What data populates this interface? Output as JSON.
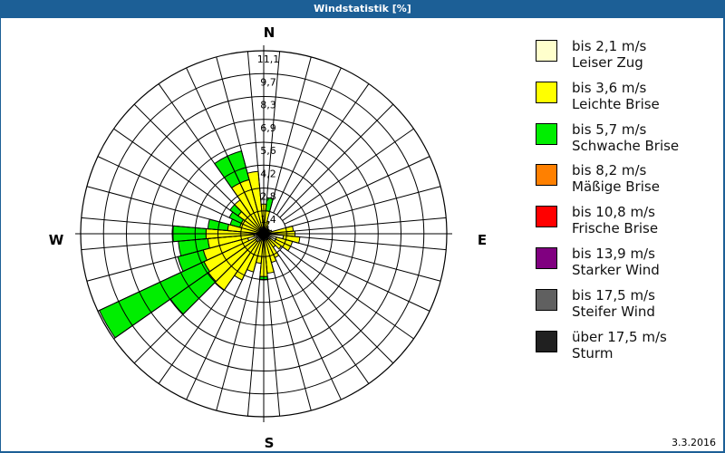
{
  "window": {
    "title": "Windstatistik [%]"
  },
  "footer": {
    "date": "3.3.2016"
  },
  "compass": {
    "N": "N",
    "E": "E",
    "S": "S",
    "W": "W"
  },
  "legend": [
    {
      "line1": "bis 2,1 m/s",
      "line2": "Leiser Zug",
      "color": "#ffffcc"
    },
    {
      "line1": "bis 3,6 m/s",
      "line2": "Leichte Brise",
      "color": "#ffff00"
    },
    {
      "line1": "bis 5,7 m/s",
      "line2": "Schwache Brise",
      "color": "#00ee00"
    },
    {
      "line1": "bis 8,2 m/s",
      "line2": "Mäßige Brise",
      "color": "#ff8000"
    },
    {
      "line1": "bis 10,8 m/s",
      "line2": "Frische Brise",
      "color": "#ff0000"
    },
    {
      "line1": "bis 13,9 m/s",
      "line2": "Starker Wind",
      "color": "#800080"
    },
    {
      "line1": "bis 17,5 m/s",
      "line2": "Steifer Wind",
      "color": "#606060"
    },
    {
      "line1": "über 17,5 m/s",
      "line2": "Sturm",
      "color": "#202020"
    }
  ],
  "chart_data": {
    "type": "wind-rose",
    "title": "Windstatistik [%]",
    "radial_ticks": [
      "1,4",
      "2,8",
      "4,2",
      "5,6",
      "6,9",
      "8,3",
      "9,7",
      "11,1"
    ],
    "rmax": 11.1,
    "sector_width_deg": 10,
    "bins": [
      "bis 2,1 m/s",
      "bis 3,6 m/s",
      "bis 5,7 m/s"
    ],
    "sectors": [
      {
        "dir": 0,
        "values": [
          0.6,
          1.2,
          0.0
        ]
      },
      {
        "dir": 10,
        "values": [
          0.4,
          1.0,
          0.8
        ]
      },
      {
        "dir": 20,
        "values": [
          0.3,
          0.5,
          0.0
        ]
      },
      {
        "dir": 30,
        "values": [
          0.2,
          0.3,
          0.0
        ]
      },
      {
        "dir": 40,
        "values": [
          0.2,
          0.2,
          0.0
        ]
      },
      {
        "dir": 50,
        "values": [
          0.2,
          0.2,
          0.0
        ]
      },
      {
        "dir": 60,
        "values": [
          0.2,
          0.2,
          0.0
        ]
      },
      {
        "dir": 70,
        "values": [
          0.2,
          0.3,
          0.0
        ]
      },
      {
        "dir": 80,
        "values": [
          0.4,
          1.4,
          0.0
        ]
      },
      {
        "dir": 90,
        "values": [
          0.5,
          1.4,
          0.0
        ]
      },
      {
        "dir": 100,
        "values": [
          1.2,
          1.0,
          0.0
        ]
      },
      {
        "dir": 110,
        "values": [
          0.8,
          1.0,
          0.0
        ]
      },
      {
        "dir": 120,
        "values": [
          0.8,
          1.0,
          0.0
        ]
      },
      {
        "dir": 130,
        "values": [
          0.5,
          0.8,
          0.0
        ]
      },
      {
        "dir": 140,
        "values": [
          0.4,
          0.6,
          0.0
        ]
      },
      {
        "dir": 150,
        "values": [
          0.4,
          1.2,
          0.0
        ]
      },
      {
        "dir": 160,
        "values": [
          0.4,
          1.4,
          0.0
        ]
      },
      {
        "dir": 170,
        "values": [
          0.4,
          2.0,
          0.0
        ]
      },
      {
        "dir": 180,
        "values": [
          0.4,
          2.2,
          0.2
        ]
      },
      {
        "dir": 190,
        "values": [
          0.4,
          1.4,
          0.0
        ]
      },
      {
        "dir": 200,
        "values": [
          0.4,
          2.0,
          0.0
        ]
      },
      {
        "dir": 210,
        "values": [
          0.5,
          2.6,
          0.0
        ]
      },
      {
        "dir": 220,
        "values": [
          0.6,
          3.6,
          0.0
        ]
      },
      {
        "dir": 230,
        "values": [
          0.6,
          3.5,
          2.8
        ]
      },
      {
        "dir": 240,
        "values": [
          0.5,
          3.5,
          7.0
        ]
      },
      {
        "dir": 250,
        "values": [
          1.0,
          2.8,
          1.6
        ]
      },
      {
        "dir": 260,
        "values": [
          0.6,
          2.8,
          1.8
        ]
      },
      {
        "dir": 270,
        "values": [
          0.5,
          3.0,
          2.0
        ]
      },
      {
        "dir": 280,
        "values": [
          0.4,
          1.8,
          1.2
        ]
      },
      {
        "dir": 290,
        "values": [
          0.3,
          1.2,
          0.6
        ]
      },
      {
        "dir": 300,
        "values": [
          0.3,
          1.2,
          0.8
        ]
      },
      {
        "dir": 310,
        "values": [
          0.3,
          1.6,
          0.6
        ]
      },
      {
        "dir": 320,
        "values": [
          0.3,
          2.2,
          0.0
        ]
      },
      {
        "dir": 330,
        "values": [
          0.4,
          3.0,
          1.8
        ]
      },
      {
        "dir": 340,
        "values": [
          0.4,
          3.0,
          1.8
        ]
      },
      {
        "dir": 350,
        "values": [
          0.4,
          3.4,
          0.0
        ]
      }
    ]
  }
}
